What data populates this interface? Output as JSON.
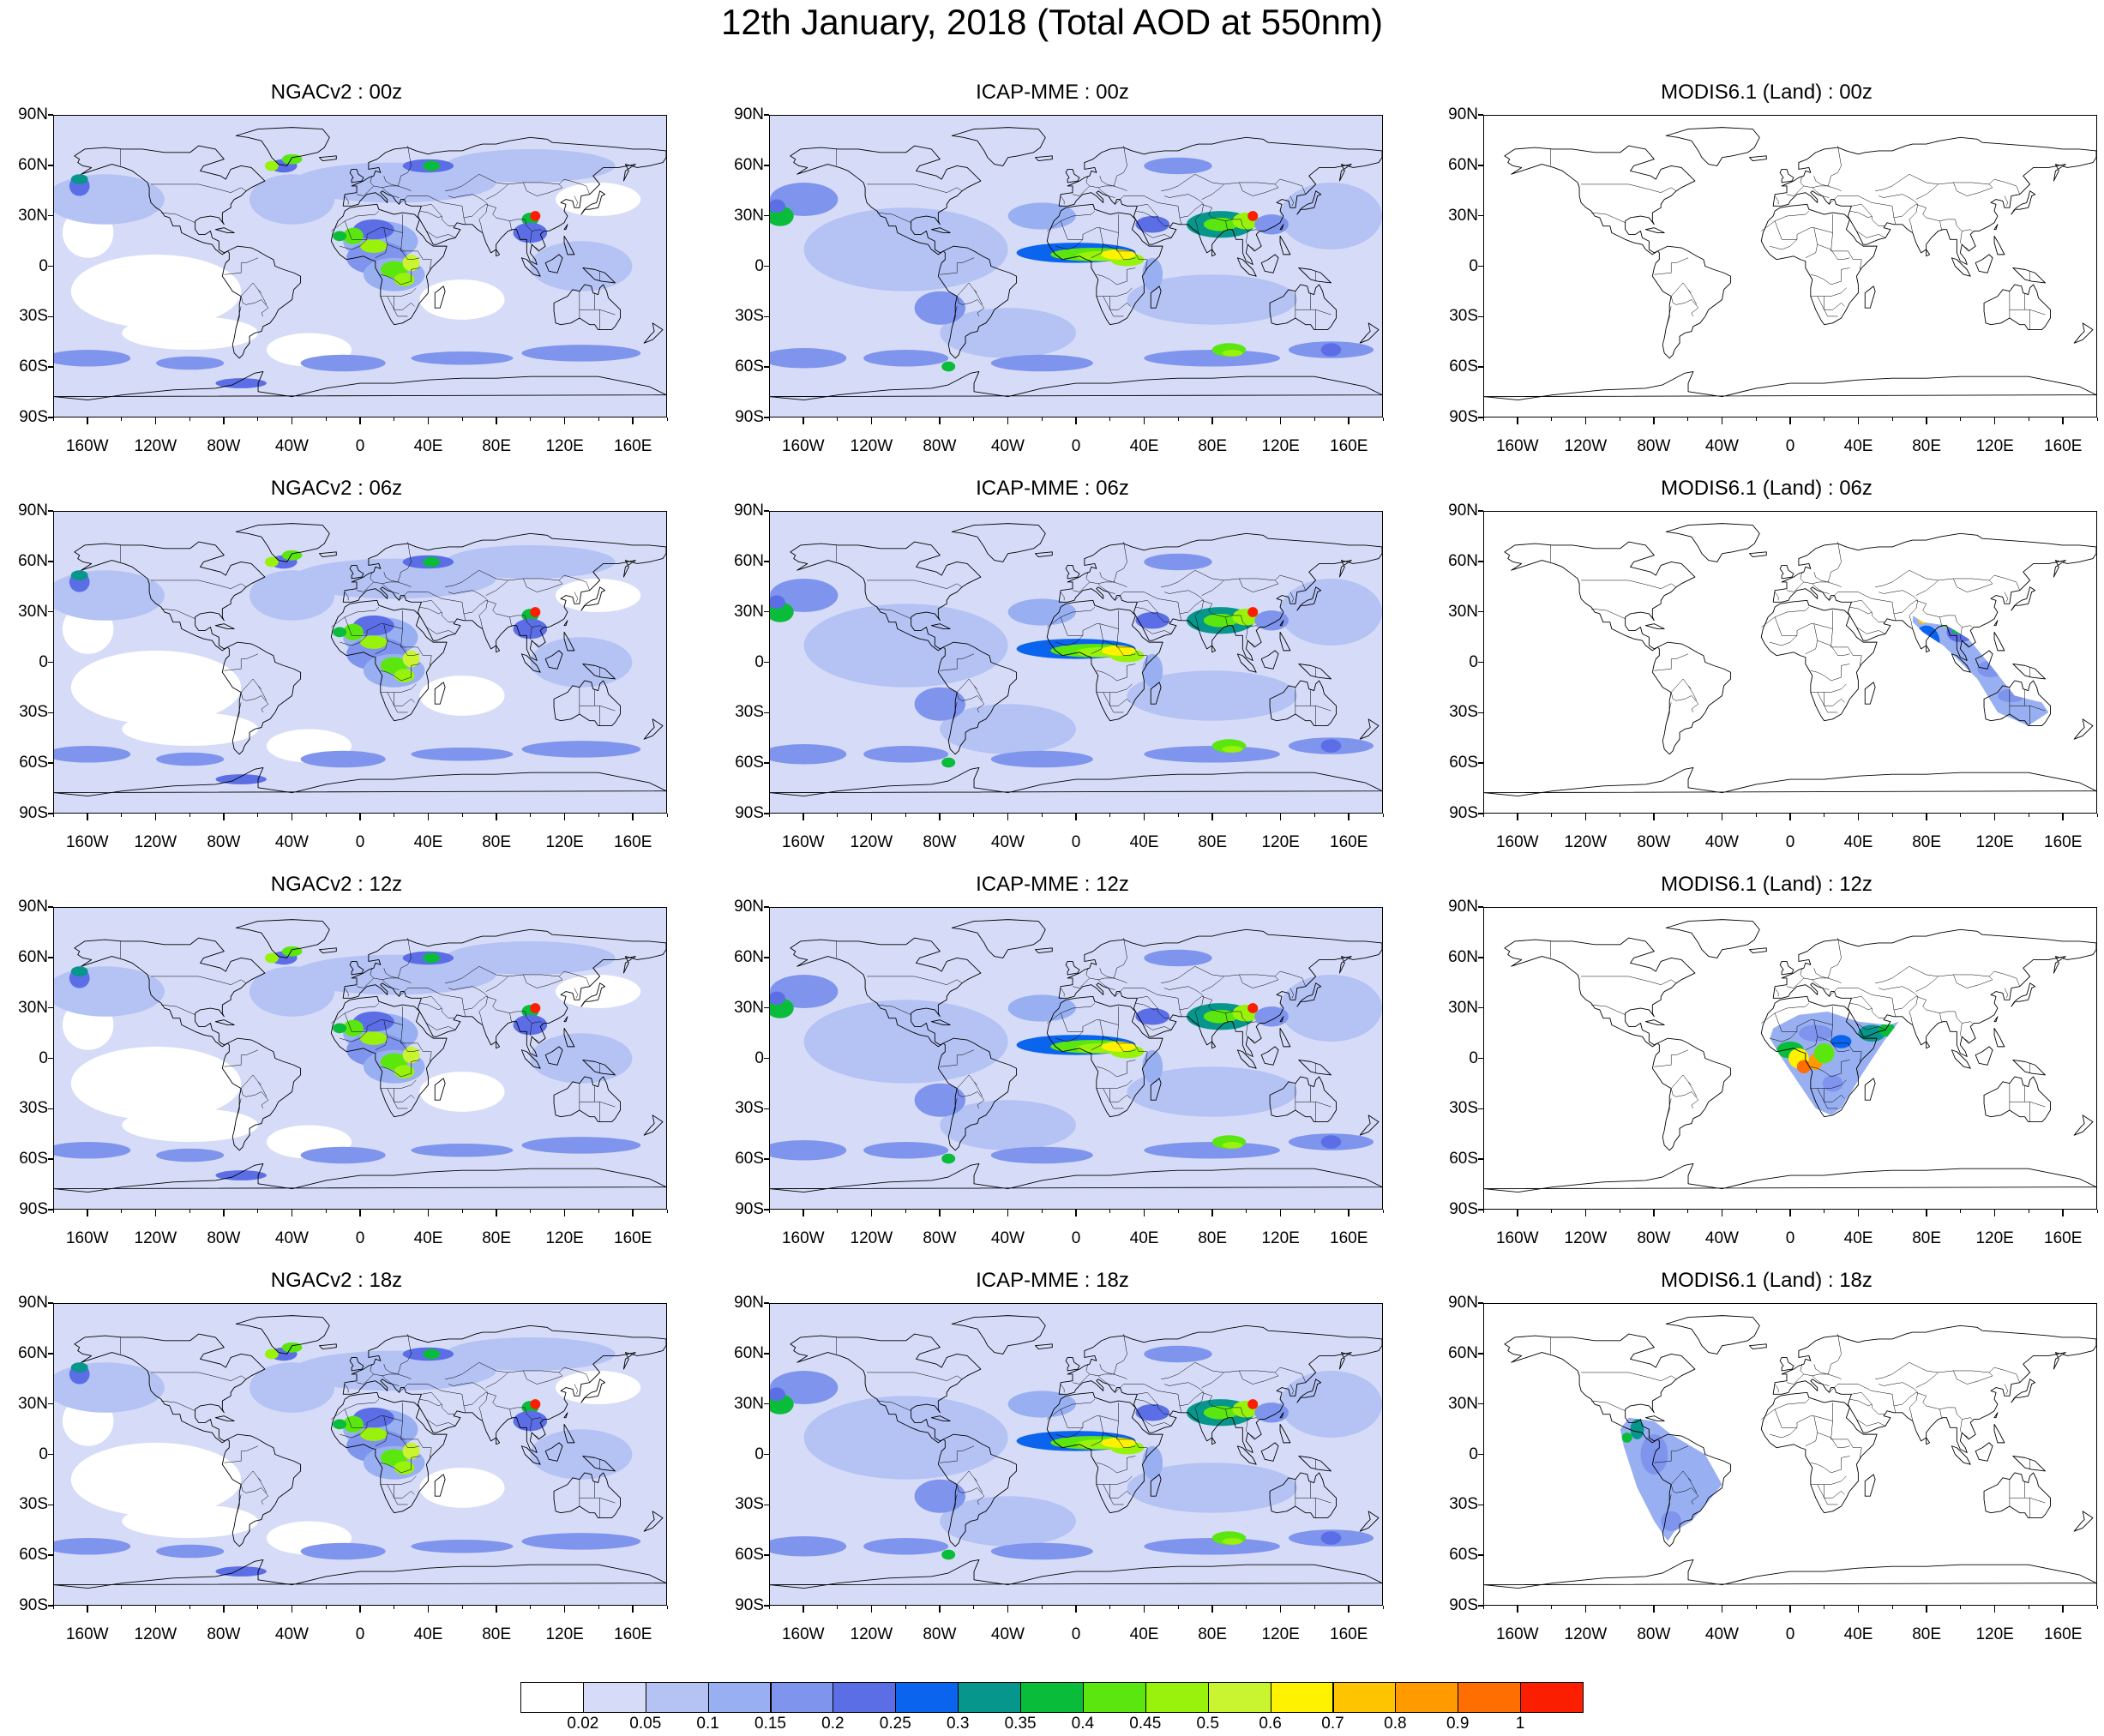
{
  "title": "12th January, 2018 (Total AOD at 550nm)",
  "latitude_ticks": [
    "90N",
    "60N",
    "30N",
    "0",
    "30S",
    "60S",
    "90S"
  ],
  "longitude_ticks": [
    "160W",
    "120W",
    "80W",
    "40W",
    "0",
    "40E",
    "80E",
    "120E",
    "160E"
  ],
  "longitude_tick_values": [
    -160,
    -120,
    -80,
    -40,
    0,
    40,
    80,
    120,
    160
  ],
  "latitude_tick_values": [
    90,
    60,
    30,
    0,
    -30,
    -60,
    -90
  ],
  "map_extent": {
    "lon": [
      -180,
      180
    ],
    "lat": [
      -90,
      90
    ]
  },
  "panels": [
    {
      "title": "NGACv2 : 00z",
      "model": "ngac"
    },
    {
      "title": "ICAP-MME : 00z",
      "model": "icap"
    },
    {
      "title": "MODIS6.1 (Land) : 00z",
      "model": "modis",
      "swath": "none"
    },
    {
      "title": "NGACv2 : 06z",
      "model": "ngac"
    },
    {
      "title": "ICAP-MME : 06z",
      "model": "icap"
    },
    {
      "title": "MODIS6.1 (Land) : 06z",
      "model": "modis",
      "swath": "asia"
    },
    {
      "title": "NGACv2 : 12z",
      "model": "ngac"
    },
    {
      "title": "ICAP-MME : 12z",
      "model": "icap"
    },
    {
      "title": "MODIS6.1 (Land) : 12z",
      "model": "modis",
      "swath": "africa"
    },
    {
      "title": "NGACv2 : 18z",
      "model": "ngac"
    },
    {
      "title": "ICAP-MME : 18z",
      "model": "icap"
    },
    {
      "title": "MODIS6.1 (Land) : 18z",
      "model": "modis",
      "swath": "samerica"
    }
  ],
  "colorbar": {
    "labels": [
      "0.02",
      "0.05",
      "0.1",
      "0.15",
      "0.2",
      "0.25",
      "0.3",
      "0.35",
      "0.4",
      "0.45",
      "0.5",
      "0.6",
      "0.7",
      "0.8",
      "0.9",
      "1"
    ],
    "colors": [
      "#ffffff",
      "#d6dcf8",
      "#b4c2f4",
      "#98b0f2",
      "#7f94ec",
      "#5c6ee6",
      "#0a64ee",
      "#07968c",
      "#09bc3a",
      "#5ce610",
      "#98f20c",
      "#c8f430",
      "#fff200",
      "#ffc400",
      "#ff9a00",
      "#ff6e00",
      "#fc1e00"
    ]
  }
}
